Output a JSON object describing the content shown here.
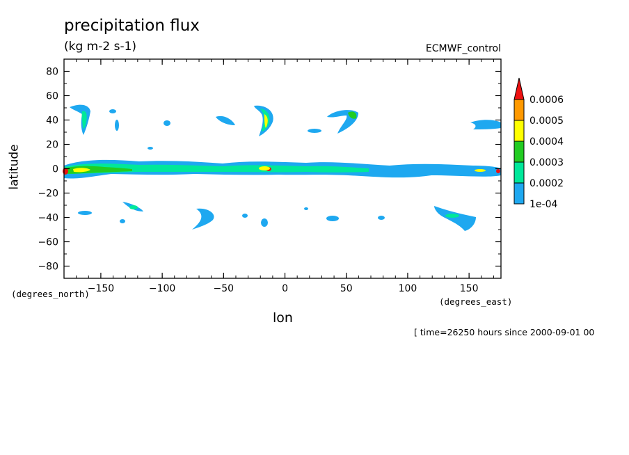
{
  "chart_data": {
    "type": "heatmap",
    "title": "precipitation flux",
    "units": "(kg m-2 s-1)",
    "dataset": "ECMWF_control",
    "xlabel": "lon",
    "ylabel": "latitude",
    "x_units": "(degrees_east)",
    "y_units": "(degrees_north)",
    "time_info": "[ time=26250 hours since 2000-09-01 00",
    "xlim": [
      -180,
      176
    ],
    "ylim": [
      -90,
      90
    ],
    "x_ticks": [
      -150,
      -100,
      -50,
      0,
      50,
      100,
      150
    ],
    "y_ticks": [
      80,
      60,
      40,
      20,
      0,
      -20,
      -40,
      -60,
      -80
    ],
    "legend": {
      "position": "right",
      "levels": [
        "1e-04",
        "0.0002",
        "0.0003",
        "0.0004",
        "0.0005",
        "0.0006"
      ],
      "colors": [
        "#1ea8f0",
        "#00e89a",
        "#22cc22",
        "#ffff00",
        "#ff9900",
        "#ee1111"
      ]
    }
  }
}
